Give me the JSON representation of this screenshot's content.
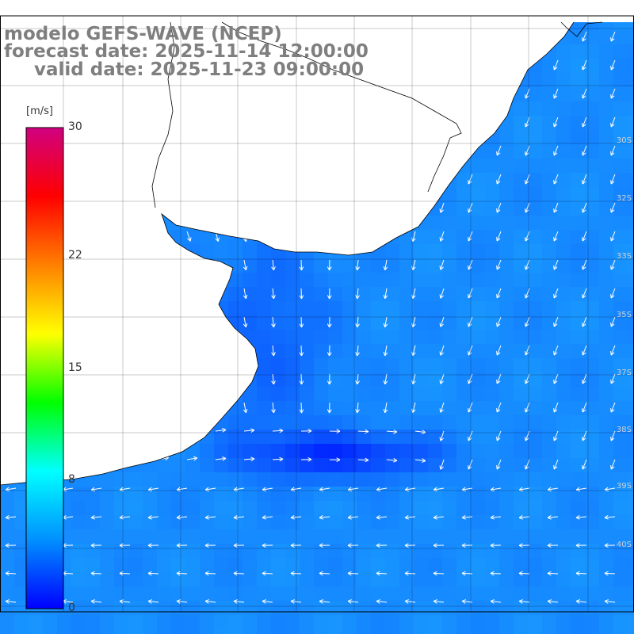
{
  "title": {
    "line1": "modelo GEFS-WAVE (NCEP)",
    "line2": "forecast date: 2025-11-14 12:00:00",
    "line3": "valid date: 2025-11-23 09:00:00"
  },
  "colorbar": {
    "unit": "[m/s]",
    "min": 0,
    "max": 30,
    "ticks": [
      "30",
      "22",
      "15",
      "8",
      "0"
    ],
    "tick_values": [
      30,
      22,
      15,
      8,
      0
    ],
    "gradient": [
      "#0000ff",
      "#0090ff",
      "#00ffff",
      "#00ff00",
      "#ffff00",
      "#ff8000",
      "#ff0000",
      "#d00080"
    ]
  },
  "lat_labels": [
    "30S",
    "32S",
    "33S",
    "35S",
    "37S",
    "38S",
    "39S",
    "40S"
  ],
  "colors": {
    "land": "#ffffff",
    "coast": "#000000",
    "grid": "#000000",
    "arrows": "#ffffff",
    "calm": "#0022ee",
    "moderate": "#1aa8ff"
  }
}
